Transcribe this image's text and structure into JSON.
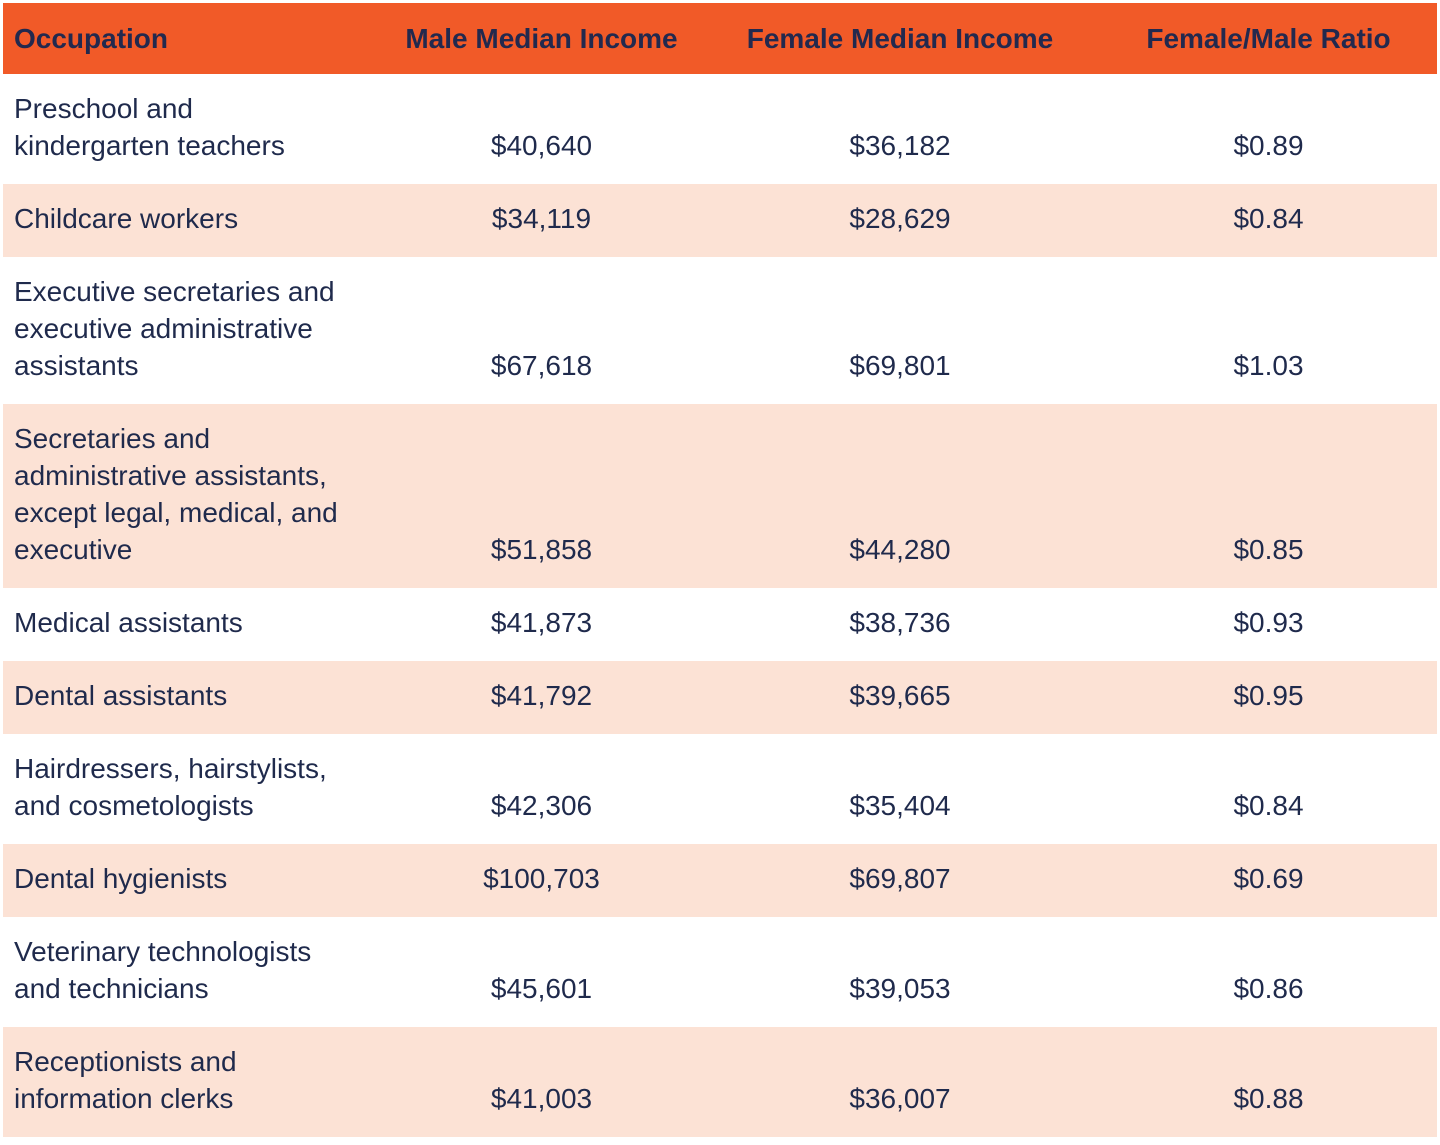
{
  "colors": {
    "header_bg": "#F15A28",
    "row_alt_bg": "#FCE2D5",
    "text_navy": "#1F2A4C",
    "row_bg": "#FFFFFF"
  },
  "table": {
    "columns": {
      "occupation": "Occupation",
      "male": "Male Median Income",
      "female": "Female Median Income",
      "ratio": "Female/Male Ratio"
    },
    "rows": [
      {
        "occupation": "Preschool and\nkindergarten teachers",
        "male": "$40,640",
        "female": "$36,182",
        "ratio": "$0.89"
      },
      {
        "occupation": "Childcare workers",
        "male": "$34,119",
        "female": "$28,629",
        "ratio": "$0.84"
      },
      {
        "occupation": "Executive secretaries and\nexecutive administrative\nassistants",
        "male": "$67,618",
        "female": "$69,801",
        "ratio": "$1.03"
      },
      {
        "occupation": "Secretaries and\nadministrative assistants,\nexcept legal, medical, and\nexecutive",
        "male": "$51,858",
        "female": "$44,280",
        "ratio": "$0.85"
      },
      {
        "occupation": "Medical assistants",
        "male": "$41,873",
        "female": "$38,736",
        "ratio": "$0.93"
      },
      {
        "occupation": "Dental assistants",
        "male": "$41,792",
        "female": "$39,665",
        "ratio": "$0.95"
      },
      {
        "occupation": "Hairdressers, hairstylists,\nand cosmetologists",
        "male": "$42,306",
        "female": "$35,404",
        "ratio": "$0.84"
      },
      {
        "occupation": "Dental hygienists",
        "male": "$100,703",
        "female": "$69,807",
        "ratio": "$0.69"
      },
      {
        "occupation": "Veterinary technologists\nand technicians",
        "male": "$45,601",
        "female": "$39,053",
        "ratio": "$0.86"
      },
      {
        "occupation": "Receptionists and\ninformation clerks",
        "male": "$41,003",
        "female": "$36,007",
        "ratio": "$0.88"
      }
    ]
  },
  "chart_data": {
    "type": "table",
    "title": "",
    "columns": [
      "Occupation",
      "Male Median Income",
      "Female Median Income",
      "Female/Male Ratio"
    ],
    "rows": [
      [
        "Preschool and kindergarten teachers",
        40640,
        36182,
        0.89
      ],
      [
        "Childcare workers",
        34119,
        28629,
        0.84
      ],
      [
        "Executive secretaries and executive administrative assistants",
        67618,
        69801,
        1.03
      ],
      [
        "Secretaries and administrative assistants, except legal, medical, and executive",
        51858,
        44280,
        0.85
      ],
      [
        "Medical assistants",
        41873,
        38736,
        0.93
      ],
      [
        "Dental assistants",
        41792,
        39665,
        0.95
      ],
      [
        "Hairdressers, hairstylists, and cosmetologists",
        42306,
        35404,
        0.84
      ],
      [
        "Dental hygienists",
        100703,
        69807,
        0.69
      ],
      [
        "Veterinary technologists and technicians",
        45601,
        39053,
        0.86
      ],
      [
        "Receptionists and information clerks",
        41003,
        36007,
        0.88
      ]
    ]
  }
}
